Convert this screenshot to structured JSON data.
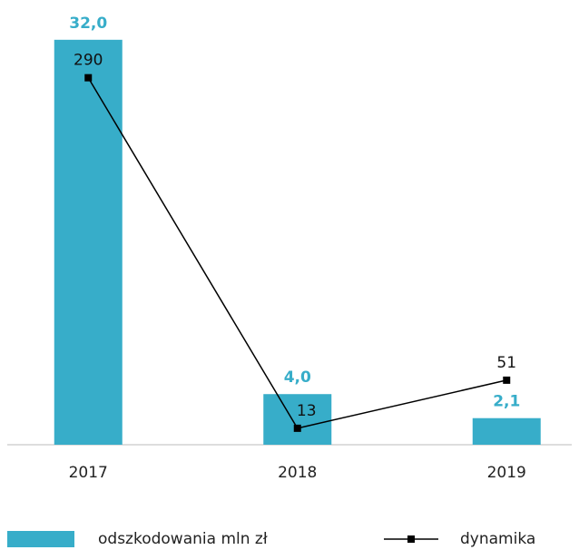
{
  "chart_data": {
    "type": "bar",
    "categories": [
      "2017",
      "2018",
      "2019"
    ],
    "series": [
      {
        "name": "odszkodowania mln zł",
        "type": "bar",
        "color": "#37adc9",
        "values": [
          32.0,
          4.0,
          2.1
        ],
        "value_labels": [
          "32,0",
          "4,0",
          "2,1"
        ]
      },
      {
        "name": "dynamika",
        "type": "line",
        "color": "#000000",
        "axis": "y2",
        "values": [
          290,
          13,
          51
        ]
      }
    ],
    "ylim": [
      0,
      35
    ],
    "y2lim": [
      0,
      350
    ]
  }
}
